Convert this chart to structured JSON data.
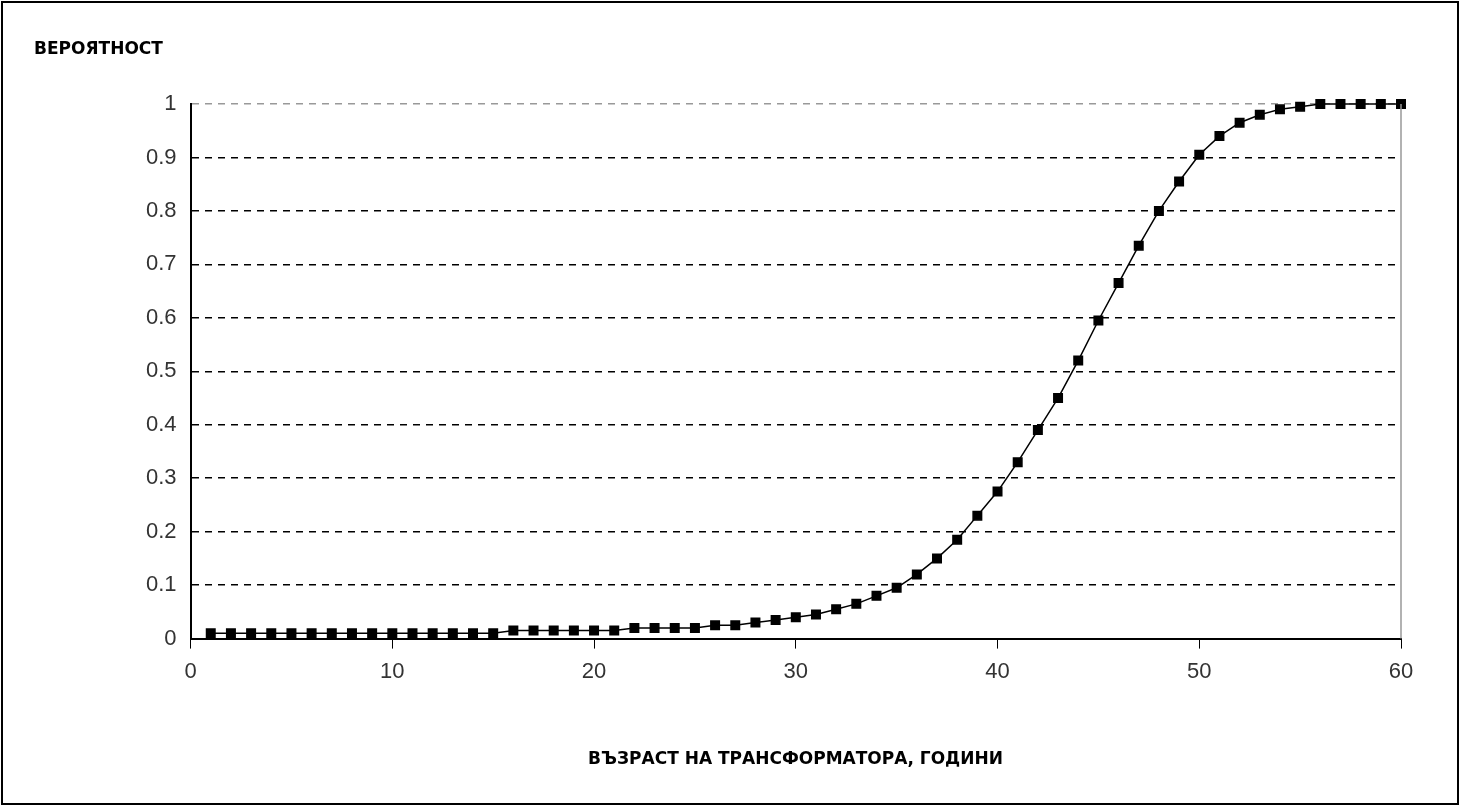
{
  "chart_data": {
    "type": "line",
    "ylabel": "ВЕРОЯТНОСТ",
    "xlabel": "ВЪЗРАСТ НА ТРАНСФОРМАТОРА, ГОДИНИ",
    "x": [
      1,
      2,
      3,
      4,
      5,
      6,
      7,
      8,
      9,
      10,
      11,
      12,
      13,
      14,
      15,
      16,
      17,
      18,
      19,
      20,
      21,
      22,
      23,
      24,
      25,
      26,
      27,
      28,
      29,
      30,
      31,
      32,
      33,
      34,
      35,
      36,
      37,
      38,
      39,
      40,
      41,
      42,
      43,
      44,
      45,
      46,
      47,
      48,
      49,
      50,
      51,
      52,
      53,
      54,
      55,
      56,
      57,
      58,
      59,
      60
    ],
    "series": [
      {
        "color": "#000000",
        "values": [
          0.01,
          0.01,
          0.01,
          0.01,
          0.01,
          0.01,
          0.01,
          0.01,
          0.01,
          0.01,
          0.01,
          0.01,
          0.01,
          0.01,
          0.01,
          0.015,
          0.015,
          0.015,
          0.015,
          0.015,
          0.015,
          0.02,
          0.02,
          0.02,
          0.02,
          0.025,
          0.025,
          0.03,
          0.035,
          0.04,
          0.045,
          0.055,
          0.065,
          0.08,
          0.095,
          0.12,
          0.15,
          0.185,
          0.23,
          0.275,
          0.33,
          0.39,
          0.45,
          0.52,
          0.595,
          0.665,
          0.735,
          0.8,
          0.855,
          0.905,
          0.94,
          0.965,
          0.98,
          0.99,
          0.995,
          1,
          1,
          1,
          1,
          1
        ]
      }
    ],
    "xlim": [
      0,
      60
    ],
    "xticks": [
      0,
      10,
      20,
      30,
      40,
      50,
      60
    ],
    "ylim": [
      0,
      1
    ],
    "yticks": [
      0,
      0.1,
      0.2,
      0.3,
      0.4,
      0.5,
      0.6,
      0.7,
      0.8,
      0.9,
      1
    ],
    "grid": "y",
    "marker": "square",
    "line_style": "solid",
    "legend": false
  }
}
